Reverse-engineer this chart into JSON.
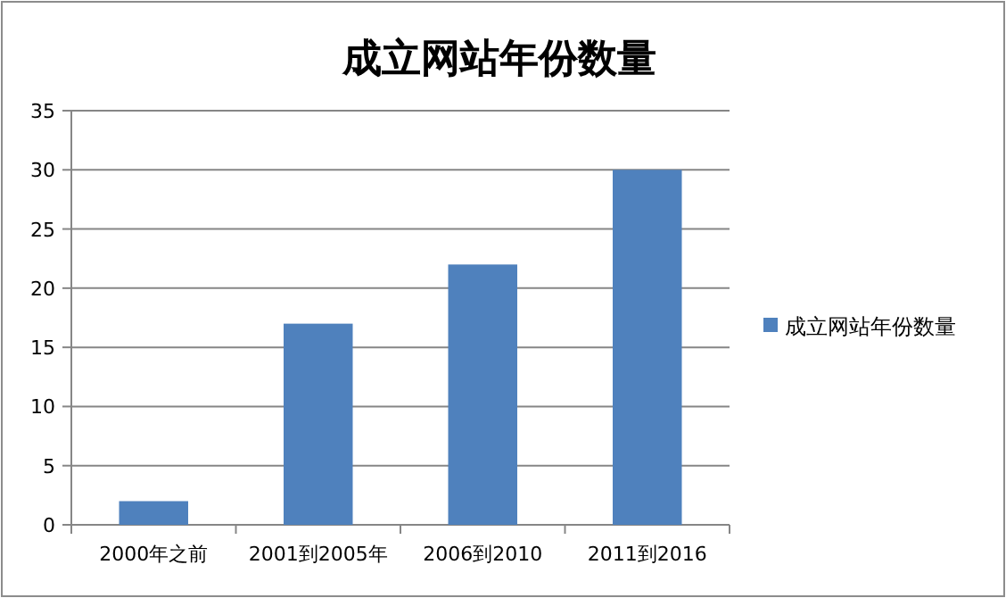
{
  "chart_data": {
    "type": "bar",
    "title": "成立网站年份数量",
    "categories": [
      "2000年之前",
      "2001到2005年",
      "2006到2010",
      "2011到2016"
    ],
    "series": [
      {
        "name": "成立网站年份数量",
        "color": "#4f81bd",
        "values": [
          2,
          17,
          22,
          30
        ]
      }
    ],
    "ylim": [
      0,
      35
    ],
    "yticks": [
      0,
      5,
      10,
      15,
      20,
      25,
      30,
      35
    ],
    "grid": "y",
    "legend": "right"
  }
}
